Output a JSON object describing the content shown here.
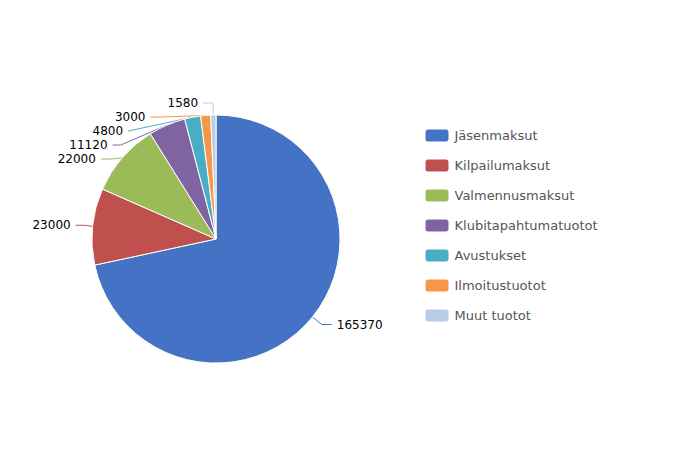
{
  "chart_data": {
    "type": "pie",
    "categories": [
      "Jäsenmaksut",
      "Kilpailumaksut",
      "Valmennusmaksut",
      "Klubitapahtumatuotot",
      "Avustukset",
      "Ilmoitustuotot",
      "Muut tuotot"
    ],
    "values": [
      165370,
      23000,
      22000,
      11120,
      4800,
      3000,
      1580
    ],
    "colors": [
      "#4472C4",
      "#C0504D",
      "#9BBB59",
      "#8064A2",
      "#4BACC6",
      "#F79646",
      "#B8CCE4"
    ],
    "data_labels": true,
    "legend": "right"
  }
}
